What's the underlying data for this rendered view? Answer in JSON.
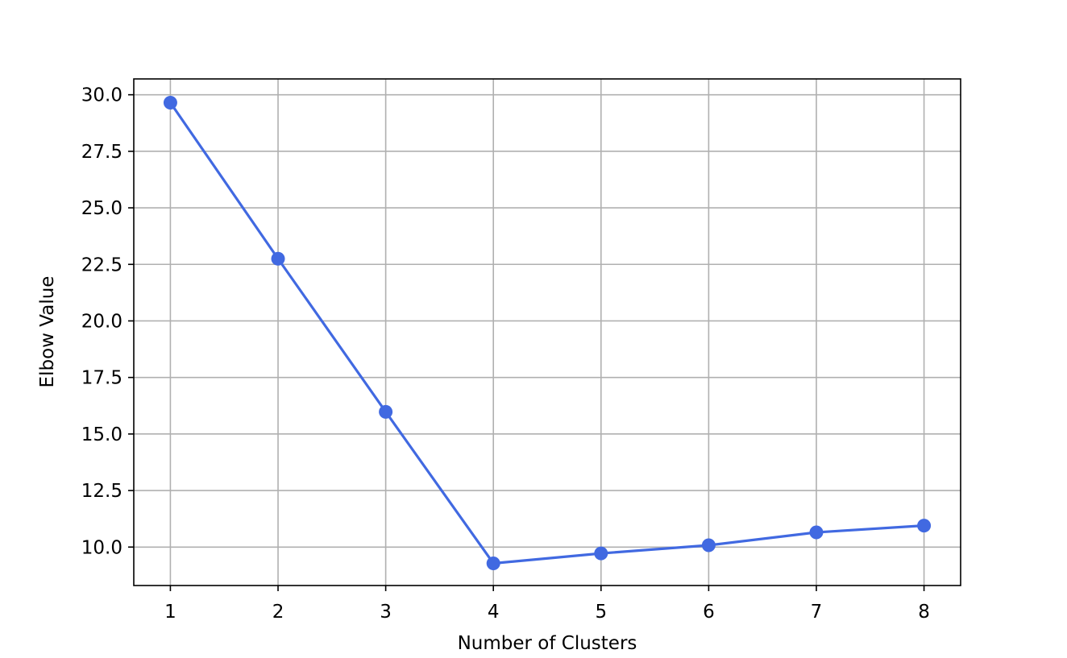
{
  "chart_data": {
    "type": "line",
    "title": "",
    "xlabel": "Number of Clusters",
    "ylabel": "Elbow Value",
    "x": [
      1,
      2,
      3,
      4,
      5,
      6,
      7,
      8
    ],
    "series": [
      {
        "values": [
          29.65,
          22.75,
          15.98,
          9.28,
          9.72,
          10.08,
          10.65,
          10.95
        ]
      }
    ],
    "xlim": [
      0.66,
      8.34
    ],
    "ylim": [
      8.3,
      30.7
    ],
    "x_ticks": [
      "1",
      "2",
      "3",
      "4",
      "5",
      "6",
      "7",
      "8"
    ],
    "y_ticks": [
      "10.0",
      "12.5",
      "15.0",
      "17.5",
      "20.0",
      "22.5",
      "25.0",
      "27.5",
      "30.0"
    ],
    "grid": true,
    "line_color": "#4169e1",
    "marker": "circle"
  }
}
